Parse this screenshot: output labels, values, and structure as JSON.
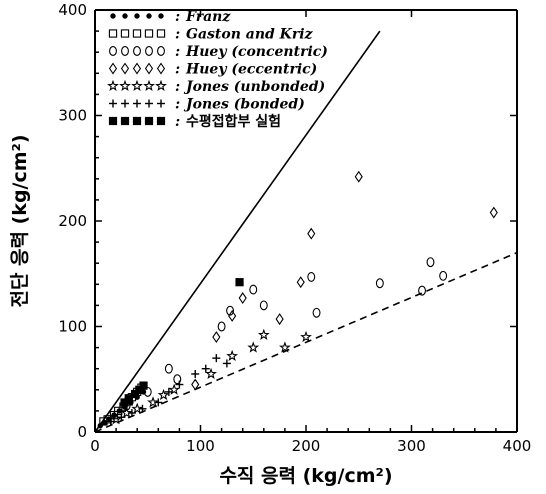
{
  "chart_data": {
    "type": "scatter",
    "xlabel": "수직 응력 (kg/cm²)",
    "ylabel": "전단 응력 (kg/cm²)",
    "xlim": [
      0,
      400
    ],
    "ylim": [
      0,
      400
    ],
    "xticks": [
      "0",
      "100",
      "200",
      "300",
      "400"
    ],
    "yticks": [
      "0",
      "100",
      "200",
      "300",
      "400"
    ],
    "grid": false,
    "legend_position": "top-left",
    "series": [
      {
        "name": "Franz",
        "marker": "dot",
        "points": [
          [
            5,
            6
          ],
          [
            9,
            9
          ],
          [
            13,
            12
          ],
          [
            18,
            16
          ],
          [
            23,
            20
          ],
          [
            28,
            24
          ],
          [
            34,
            28
          ],
          [
            40,
            33
          ],
          [
            46,
            38
          ]
        ]
      },
      {
        "name": "Gaston and Kriz",
        "marker": "square",
        "points": [
          [
            8,
            10
          ],
          [
            12,
            12
          ],
          [
            18,
            16
          ],
          [
            22,
            20
          ],
          [
            27,
            24
          ],
          [
            32,
            29
          ],
          [
            35,
            33
          ],
          [
            40,
            38
          ],
          [
            44,
            42
          ]
        ]
      },
      {
        "name": "Huey (concentric)",
        "marker": "circle",
        "points": [
          [
            30,
            25
          ],
          [
            50,
            38
          ],
          [
            70,
            60
          ],
          [
            78,
            50
          ],
          [
            120,
            100
          ],
          [
            128,
            115
          ],
          [
            150,
            135
          ],
          [
            160,
            120
          ],
          [
            205,
            147
          ],
          [
            210,
            113
          ],
          [
            270,
            141
          ],
          [
            310,
            134
          ],
          [
            318,
            161
          ],
          [
            330,
            148
          ]
        ]
      },
      {
        "name": "Huey (eccentric)",
        "marker": "diamond",
        "points": [
          [
            95,
            45
          ],
          [
            115,
            90
          ],
          [
            130,
            110
          ],
          [
            140,
            127
          ],
          [
            175,
            107
          ],
          [
            195,
            142
          ],
          [
            205,
            188
          ],
          [
            250,
            242
          ],
          [
            378,
            208
          ]
        ]
      },
      {
        "name": "Jones (unbonded)",
        "marker": "star",
        "points": [
          [
            20,
            12
          ],
          [
            30,
            18
          ],
          [
            40,
            22
          ],
          [
            55,
            28
          ],
          [
            65,
            35
          ],
          [
            75,
            40
          ],
          [
            110,
            55
          ],
          [
            130,
            72
          ],
          [
            150,
            80
          ],
          [
            160,
            92
          ],
          [
            180,
            80
          ],
          [
            200,
            90
          ]
        ]
      },
      {
        "name": "Jones (bonded)",
        "marker": "plus",
        "points": [
          [
            15,
            10
          ],
          [
            25,
            14
          ],
          [
            35,
            18
          ],
          [
            45,
            22
          ],
          [
            60,
            28
          ],
          [
            70,
            38
          ],
          [
            80,
            45
          ],
          [
            95,
            55
          ],
          [
            105,
            60
          ],
          [
            115,
            70
          ],
          [
            125,
            65
          ]
        ]
      },
      {
        "name": "수평접합부 실험",
        "marker": "filled-square",
        "points": [
          [
            28,
            28
          ],
          [
            32,
            32
          ],
          [
            38,
            36
          ],
          [
            42,
            40
          ],
          [
            46,
            44
          ],
          [
            137,
            142
          ]
        ]
      }
    ],
    "fit_lines": [
      {
        "style": "solid",
        "from": [
          0,
          0
        ],
        "to": [
          270,
          380
        ]
      },
      {
        "style": "dashed",
        "from": [
          0,
          0
        ],
        "to": [
          400,
          170
        ]
      }
    ]
  }
}
